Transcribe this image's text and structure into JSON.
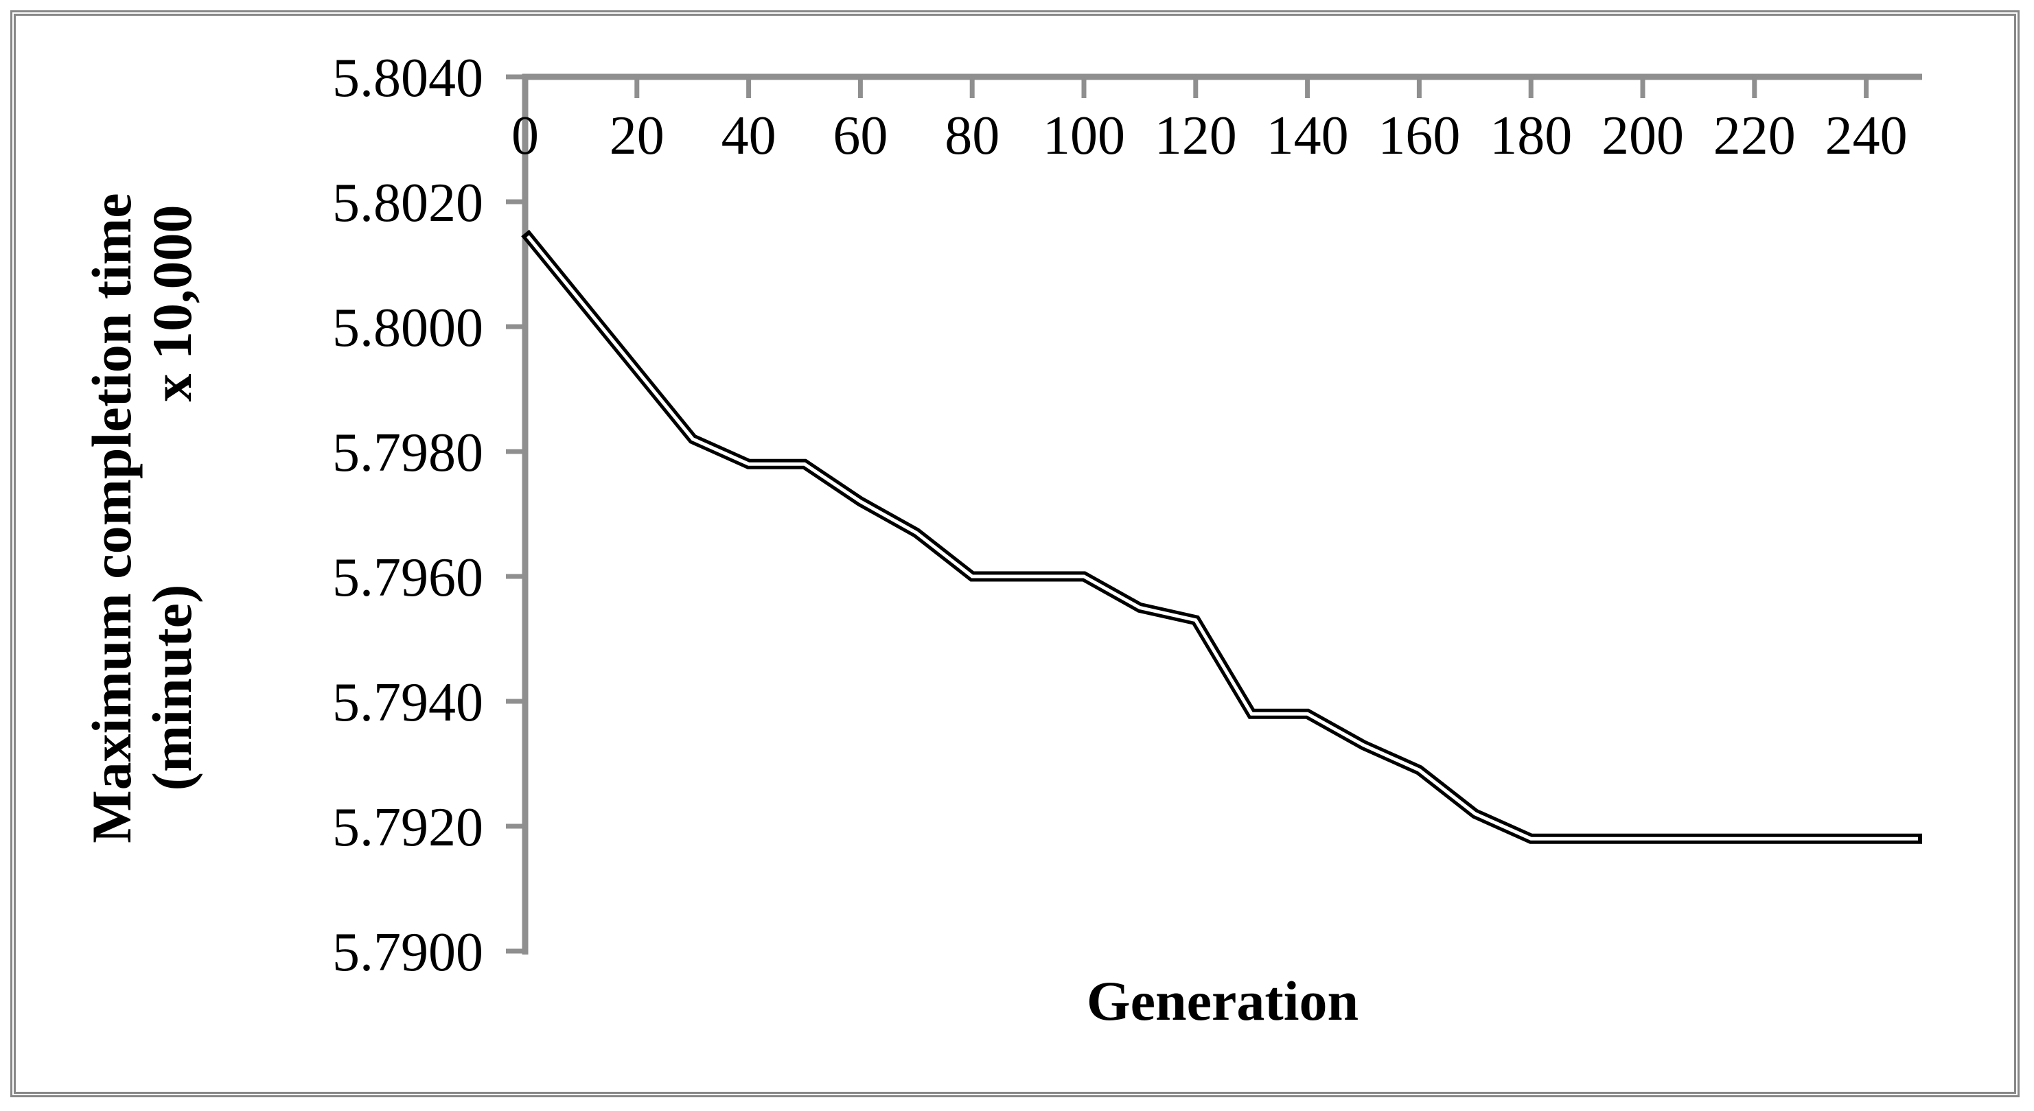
{
  "figure": {
    "xlabel": "Generation",
    "ylabel_line1": "Maximum completion time",
    "ylabel_line2": "(minute)",
    "y_display_units": "x 10,000"
  },
  "chart_data": {
    "type": "line",
    "title": "",
    "xlabel": "Generation",
    "ylabel": "Maximum completion time (minute) x 10,000",
    "x": [
      0,
      10,
      20,
      30,
      40,
      50,
      60,
      70,
      80,
      90,
      100,
      110,
      120,
      130,
      140,
      150,
      160,
      170,
      180,
      190,
      200,
      210,
      220,
      230,
      240,
      250
    ],
    "values": [
      5.8015,
      5.8004,
      5.7993,
      5.7982,
      5.7978,
      5.7978,
      5.7972,
      5.7967,
      5.796,
      5.796,
      5.796,
      5.7955,
      5.7953,
      5.7938,
      5.7938,
      5.7933,
      5.7929,
      5.7922,
      5.7918,
      5.7918,
      5.7918,
      5.7918,
      5.7918,
      5.7918,
      5.7918,
      5.7918
    ],
    "xticks": [
      0,
      20,
      40,
      60,
      80,
      100,
      120,
      140,
      160,
      180,
      200,
      220,
      240
    ],
    "yticks": [
      5.79,
      5.792,
      5.794,
      5.796,
      5.798,
      5.8,
      5.802,
      5.804
    ],
    "xlim": [
      0,
      250
    ],
    "ylim": [
      5.79,
      5.804
    ],
    "grid": false,
    "legend": null,
    "x_axis_position": "top",
    "series_style": "double-line",
    "line_color": "#000000",
    "line_inner_color": "#ffffff",
    "axis_color": "#8f8f8f",
    "frame_color": "#878787"
  }
}
